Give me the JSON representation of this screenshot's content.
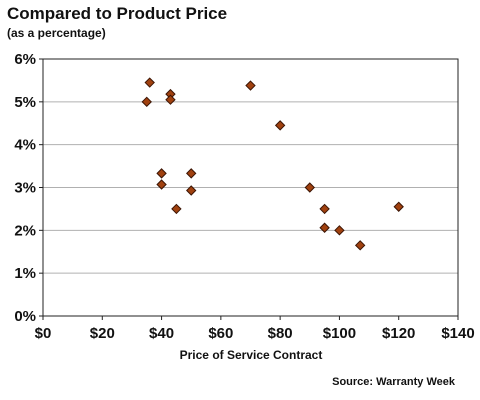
{
  "title": "Compared to Product Price",
  "subtitle": "(as a percentage)",
  "source": "Source: Warranty Week",
  "colors": {
    "marker_fill": "#a0410f",
    "marker_stroke": "#3a1404",
    "grid": "#b0b0b0",
    "axis": "#222222"
  },
  "chart_data": {
    "type": "scatter",
    "title": "Compared to Product Price",
    "subtitle": "(as a percentage)",
    "xlabel": "Price of Service Contract",
    "ylabel": "",
    "xlim": [
      0,
      140
    ],
    "ylim": [
      0,
      6
    ],
    "x_ticks": [
      "$0",
      "$20",
      "$40",
      "$60",
      "$80",
      "$100",
      "$120",
      "$140"
    ],
    "y_ticks": [
      "0%",
      "1%",
      "2%",
      "3%",
      "4%",
      "5%",
      "6%"
    ],
    "grid": "horizontal",
    "marker": "diamond",
    "points": [
      {
        "x": 35,
        "y": 5.0
      },
      {
        "x": 36,
        "y": 5.45
      },
      {
        "x": 40,
        "y": 3.33
      },
      {
        "x": 40,
        "y": 3.07
      },
      {
        "x": 43,
        "y": 5.18
      },
      {
        "x": 43,
        "y": 5.05
      },
      {
        "x": 45,
        "y": 2.5
      },
      {
        "x": 50,
        "y": 3.33
      },
      {
        "x": 50,
        "y": 2.93
      },
      {
        "x": 70,
        "y": 5.38
      },
      {
        "x": 80,
        "y": 4.45
      },
      {
        "x": 90,
        "y": 3.0
      },
      {
        "x": 95,
        "y": 2.5
      },
      {
        "x": 95,
        "y": 2.06
      },
      {
        "x": 100,
        "y": 2.0
      },
      {
        "x": 107,
        "y": 1.65
      },
      {
        "x": 120,
        "y": 2.55
      }
    ]
  }
}
